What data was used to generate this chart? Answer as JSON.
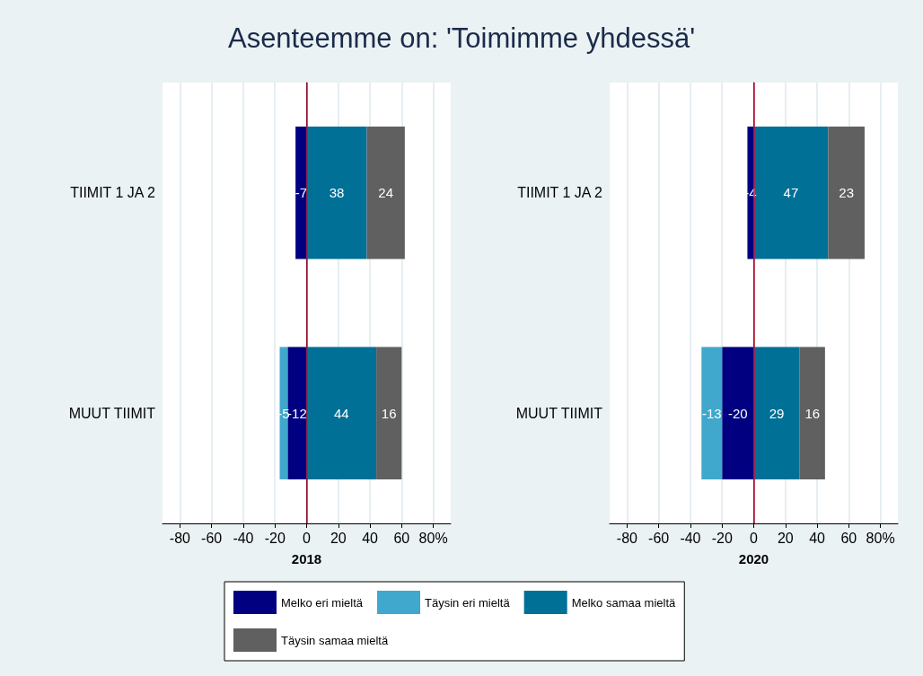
{
  "chart_data": [
    {
      "type": "bar",
      "title": "Asenteemme on: 'Toimimme yhdessä'",
      "orientation": "horizontal",
      "stacked": true,
      "xlabel": "2018",
      "categories": [
        "TIIMIT 1 JA 2",
        "MUUT TIIMIT"
      ],
      "series": [
        {
          "name": "Melko eri mieltä",
          "color": "#000080",
          "values": [
            -7,
            -12
          ]
        },
        {
          "name": "Täysin eri mieltä",
          "color": "#40a8cc",
          "values": [
            null,
            -5
          ]
        },
        {
          "name": "Melko samaa mieltä",
          "color": "#007096",
          "values": [
            38,
            44
          ]
        },
        {
          "name": "Täysin samaa mieltä",
          "color": "#606060",
          "values": [
            24,
            16
          ]
        }
      ],
      "xlim": [
        -91,
        91
      ],
      "xticks": [
        -80,
        -60,
        -40,
        -20,
        0,
        20,
        40,
        60,
        {
          "value": 80,
          "label": "80%"
        }
      ],
      "grid": "x",
      "data_labels": true,
      "legend": "bottom",
      "ref_lines": [
        {
          "axis": "x",
          "value": 0,
          "color": "#c0143c"
        }
      ]
    },
    {
      "type": "bar",
      "orientation": "horizontal",
      "stacked": true,
      "xlabel": "2020",
      "categories": [
        "TIIMIT 1 JA 2",
        "MUUT TIIMIT"
      ],
      "series": [
        {
          "color": "#000080",
          "values": [
            -4,
            -20
          ]
        },
        {
          "color": "#40a8cc",
          "values": [
            null,
            -13
          ]
        },
        {
          "color": "#007096",
          "values": [
            47,
            29
          ]
        },
        {
          "color": "#606060",
          "values": [
            23,
            16
          ]
        }
      ],
      "xlim": [
        -91,
        91
      ],
      "xticks": [
        -80,
        -60,
        -40,
        -20,
        0,
        20,
        40,
        60,
        {
          "value": 80,
          "label": "80%"
        }
      ],
      "grid": "x",
      "data_labels": true,
      "ref_lines": [
        {
          "axis": "x",
          "value": 0,
          "color": "#c0143c"
        }
      ]
    }
  ]
}
